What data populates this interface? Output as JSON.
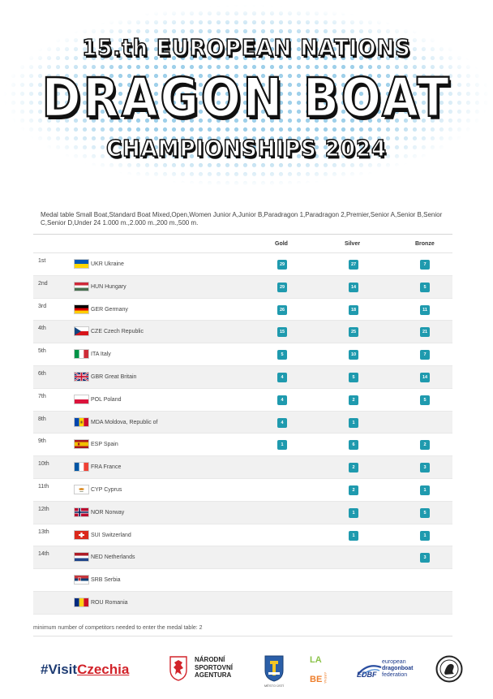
{
  "header": {
    "line1": "15.th  EUROPEAN  NATIONS",
    "line2": "DRAGON  BOAT",
    "line3": "CHAMPIONSHIPS  2024"
  },
  "description": "Medal table Small Boat,Standard Boat Mixed,Open,Women Junior A,Junior B,Paradragon 1,Paradragon 2,Premier,Senior A,Senior B,Senior C,Senior D,Under 24 1.000 m.,2.000 m.,200 m.,500 m.",
  "columns": {
    "gold": "Gold",
    "silver": "Silver",
    "bronze": "Bronze"
  },
  "rows": [
    {
      "rank": "1st",
      "flag": "ukraine-flag",
      "country": "UKR Ukraine",
      "gold": "29",
      "silver": "27",
      "bronze": "7"
    },
    {
      "rank": "2nd",
      "flag": "hungary-flag",
      "country": "HUN Hungary",
      "gold": "29",
      "silver": "14",
      "bronze": "5"
    },
    {
      "rank": "3rd",
      "flag": "germany-flag",
      "country": "GER Germany",
      "gold": "26",
      "silver": "18",
      "bronze": "11"
    },
    {
      "rank": "4th",
      "flag": "czech-flag",
      "country": "CZE Czech Republic",
      "gold": "15",
      "silver": "25",
      "bronze": "21"
    },
    {
      "rank": "5th",
      "flag": "italy-flag",
      "country": "ITA Italy",
      "gold": "5",
      "silver": "10",
      "bronze": "7"
    },
    {
      "rank": "6th",
      "flag": "uk-flag",
      "country": "GBR Great Britain",
      "gold": "4",
      "silver": "5",
      "bronze": "14"
    },
    {
      "rank": "7th",
      "flag": "poland-flag",
      "country": "POL Poland",
      "gold": "4",
      "silver": "2",
      "bronze": "5"
    },
    {
      "rank": "8th",
      "flag": "moldova-flag",
      "country": "MDA Moldova, Republic of",
      "gold": "4",
      "silver": "1",
      "bronze": ""
    },
    {
      "rank": "9th",
      "flag": "spain-flag",
      "country": "ESP Spain",
      "gold": "1",
      "silver": "6",
      "bronze": "2"
    },
    {
      "rank": "10th",
      "flag": "france-flag",
      "country": "FRA France",
      "gold": "",
      "silver": "2",
      "bronze": "3"
    },
    {
      "rank": "11th",
      "flag": "cyprus-flag",
      "country": "CYP Cyprus",
      "gold": "",
      "silver": "2",
      "bronze": "1"
    },
    {
      "rank": "12th",
      "flag": "norway-flag",
      "country": "NOR Norway",
      "gold": "",
      "silver": "1",
      "bronze": "5"
    },
    {
      "rank": "13th",
      "flag": "switzerland-flag",
      "country": "SUI Switzerland",
      "gold": "",
      "silver": "1",
      "bronze": "1"
    },
    {
      "rank": "14th",
      "flag": "netherlands-flag",
      "country": "NED Netherlands",
      "gold": "",
      "silver": "",
      "bronze": "3"
    },
    {
      "rank": "",
      "flag": "serbia-flag",
      "country": "SRB Serbia",
      "gold": "",
      "silver": "",
      "bronze": ""
    },
    {
      "rank": "",
      "flag": "romania-flag",
      "country": "ROU Romania",
      "gold": "",
      "silver": "",
      "bronze": ""
    }
  ],
  "footnote": "minimum number of competitors needed to enter the medal table: 2",
  "logos": {
    "visit_prefix": "#Visit",
    "visit_suffix": "Czechia",
    "nsa_line1": "NÁRODNÍ",
    "nsa_line2": "SPORTOVNÍ",
    "nsa_line3": "AGENTURA",
    "city_caption": "MĚSTO ÚSTÍ",
    "labe_logo": "LA ARÉNA BE",
    "edbf_mark": "EDBF",
    "edbf_line1": "european",
    "edbf_line2": "dragonboat",
    "edbf_line3": "federation"
  },
  "colors": {
    "badge": "#1f9aae",
    "dots": "#9fd0ea",
    "visit_blue": "#1e3c73",
    "visit_red": "#d2232a"
  }
}
